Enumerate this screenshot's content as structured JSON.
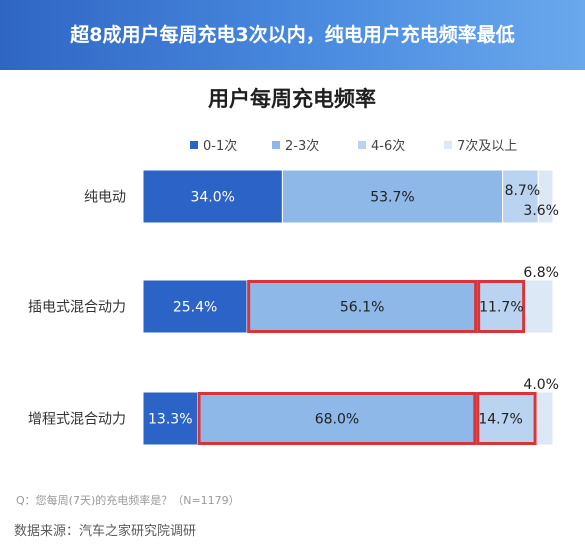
{
  "header": {
    "title": "超8成用户每周充电3次以内，纯电用户充电频率最低"
  },
  "chart_data": {
    "type": "bar",
    "stacked": true,
    "orientation": "horizontal",
    "title": "用户每周充电频率",
    "categories": [
      "纯电动",
      "插电式混合动力",
      "增程式混合动力"
    ],
    "series": [
      {
        "name": "0-1次",
        "color": "#2b63c7",
        "values": [
          34.0,
          25.4,
          13.3
        ],
        "labels": [
          "34.0%",
          "25.4%",
          "13.3%"
        ]
      },
      {
        "name": "2-3次",
        "color": "#8db8e8",
        "values": [
          53.7,
          56.1,
          68.0
        ],
        "labels": [
          "53.7%",
          "56.1%",
          "68.0%"
        ]
      },
      {
        "name": "4-6次",
        "color": "#b9d3f0",
        "values": [
          8.7,
          11.7,
          14.7
        ],
        "labels": [
          "8.7%",
          "11.7%",
          "14.7%"
        ]
      },
      {
        "name": "7次及以上",
        "color": "#dde8f6",
        "values": [
          3.6,
          6.8,
          4.0
        ],
        "labels": [
          "3.6%",
          "6.8%",
          "4.0%"
        ]
      }
    ],
    "xlim": [
      0,
      100
    ],
    "legend": "top",
    "grid": false,
    "highlight_color": "#d9343a",
    "highlights": [
      {
        "category": 1,
        "series": [
          1,
          2
        ]
      },
      {
        "category": 2,
        "series": [
          1,
          2
        ]
      }
    ]
  },
  "footer": {
    "note": "Q：您每周(7天)的充电频率是？（N=1179）",
    "source": "数据来源：汽车之家研究院调研"
  }
}
